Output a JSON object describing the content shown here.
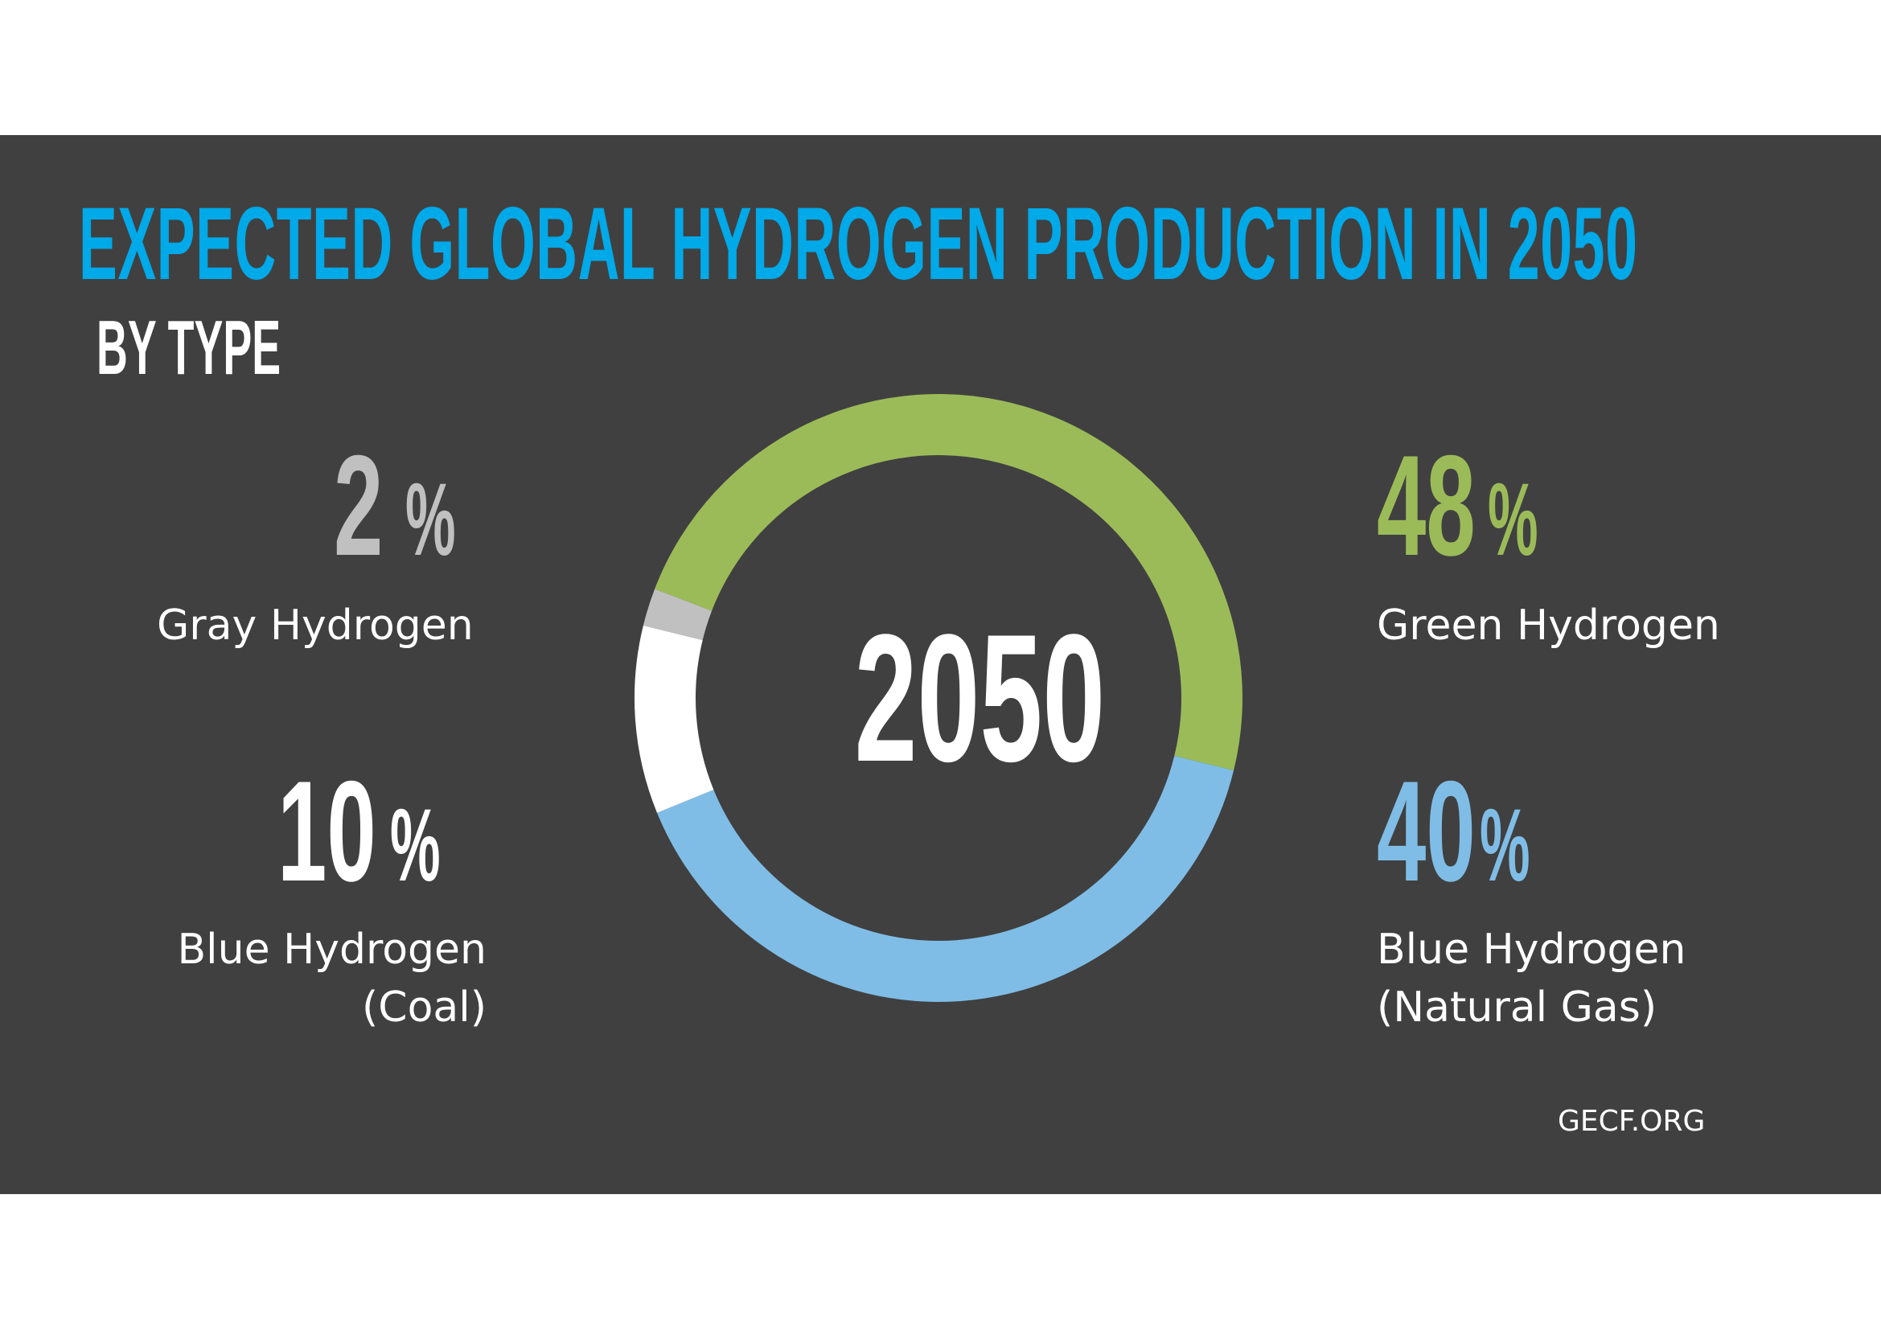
{
  "header": {
    "title": "EXPECTED GLOBAL HYDROGEN PRODUCTION IN 2050",
    "subtitle": "BY TYPE"
  },
  "center_label": "2050",
  "source": "GECF.ORG",
  "colors": {
    "background": "#404040",
    "title": "#00a9e8",
    "green": "#9bbb59",
    "blue": "#7fbde6",
    "gray": "#c0c0c0",
    "white": "#ffffff"
  },
  "stats": {
    "gray": {
      "value": "2",
      "unit": "%",
      "label": "Gray Hydrogen"
    },
    "coal": {
      "value": "10",
      "unit": "%",
      "label_line1": "Blue Hydrogen",
      "label_line2": "(Coal)"
    },
    "green": {
      "value": "48",
      "unit": "%",
      "label": "Green Hydrogen"
    },
    "gas": {
      "value": "40",
      "unit": "%",
      "label_line1": "Blue Hydrogen",
      "label_line2": "(Natural Gas)"
    }
  },
  "chart_data": {
    "type": "pie",
    "subtype": "donut",
    "title": "Expected Global Hydrogen Production in 2050",
    "subtitle": "By Type",
    "center_text": "2050",
    "categories": [
      "Green Hydrogen",
      "Blue Hydrogen (Natural Gas)",
      "Blue Hydrogen (Coal)",
      "Gray Hydrogen"
    ],
    "values": [
      48,
      40,
      10,
      2
    ],
    "unit": "%",
    "colors": [
      "#9bbb59",
      "#7fbde6",
      "#ffffff",
      "#c0c0c0"
    ],
    "legend": "inline labels around donut"
  }
}
